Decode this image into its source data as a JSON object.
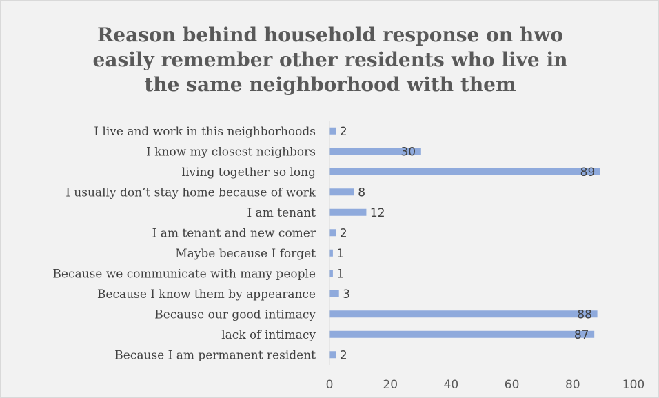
{
  "chart_data": {
    "type": "bar",
    "orientation": "horizontal",
    "title": "Reason behind household response on hwo easily remember other residents who live in the same neighborhood with them",
    "categories": [
      "I live and work in this neighborhoods",
      "I know my closest neighbors",
      "living together so long",
      "I usually don’t stay home because of work",
      "I am tenant",
      "I am tenant and new comer",
      "Maybe because I forget",
      "Because we communicate with many people",
      "Because I know them by appearance",
      "Because our good intimacy",
      "lack of intimacy",
      "Because I am permanent resident"
    ],
    "values": [
      2,
      30,
      89,
      8,
      12,
      2,
      1,
      1,
      3,
      88,
      87,
      2
    ],
    "xlim": [
      0,
      100
    ],
    "xticks": [
      0,
      20,
      40,
      60,
      80,
      100
    ],
    "xlabel": "",
    "ylabel": "",
    "grid": false,
    "legend": "none",
    "bar_color": "#8faadc",
    "axis_color": "#d9d9d9",
    "background": "#f2f2f2"
  }
}
